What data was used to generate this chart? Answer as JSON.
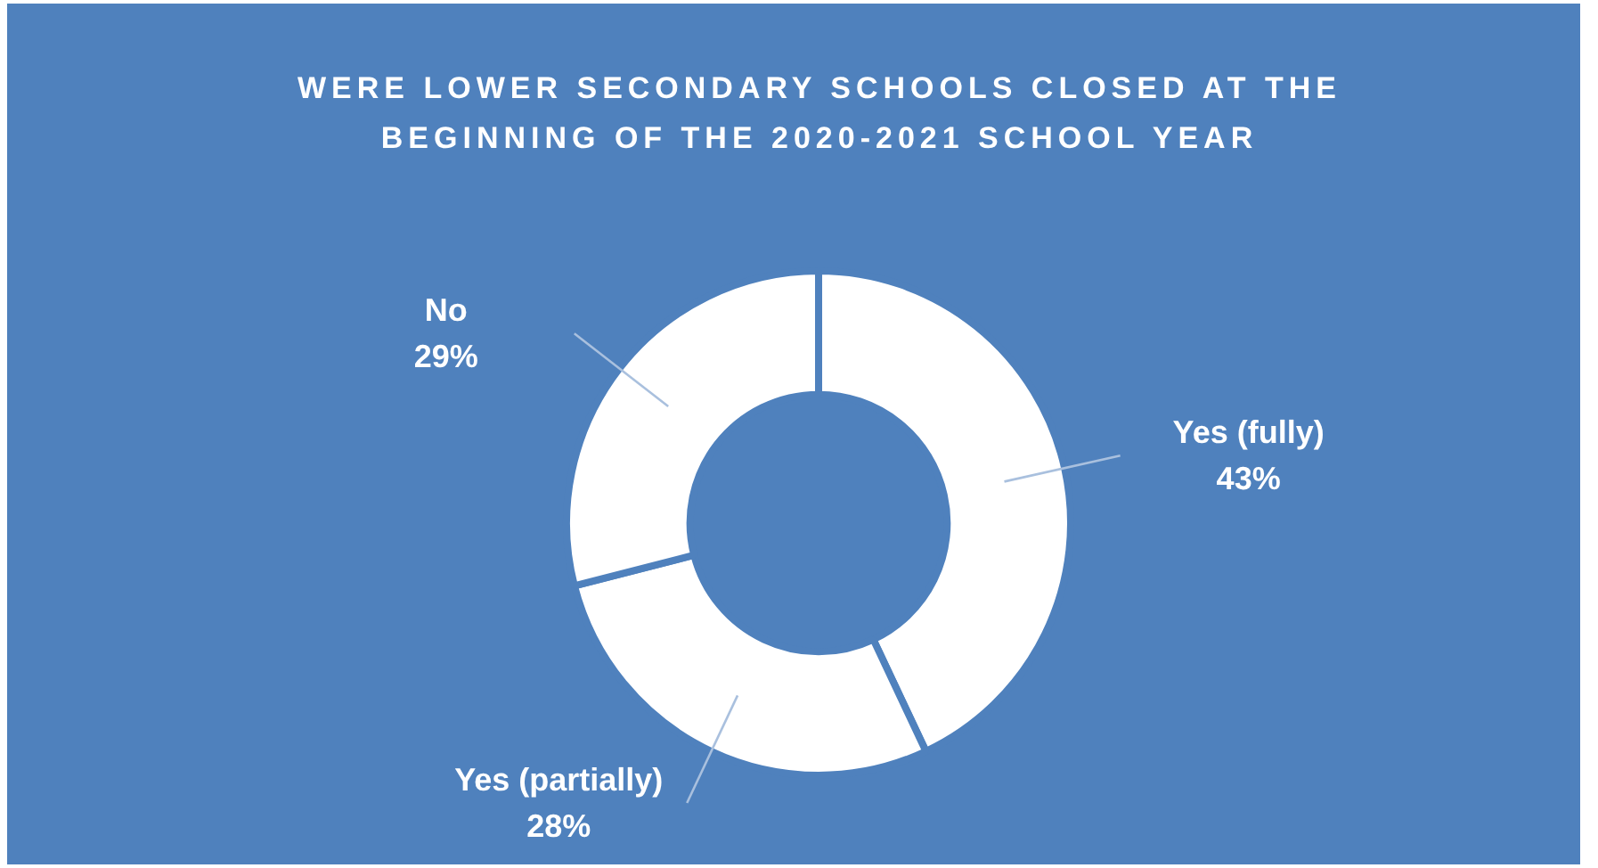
{
  "chart_data": {
    "type": "donut",
    "title": "WERE LOWER SECONDARY SCHOOLS CLOSED AT THE BEGINNING OF THE 2020-2021 SCHOOL YEAR",
    "categories": [
      "Yes (fully)",
      "Yes (partially)",
      "No"
    ],
    "values": [
      43,
      28,
      29
    ],
    "value_labels": [
      "43%",
      "28%",
      "29%"
    ],
    "colors": [
      "#ffffff",
      "#ffffff",
      "#ffffff"
    ],
    "legend": false
  }
}
